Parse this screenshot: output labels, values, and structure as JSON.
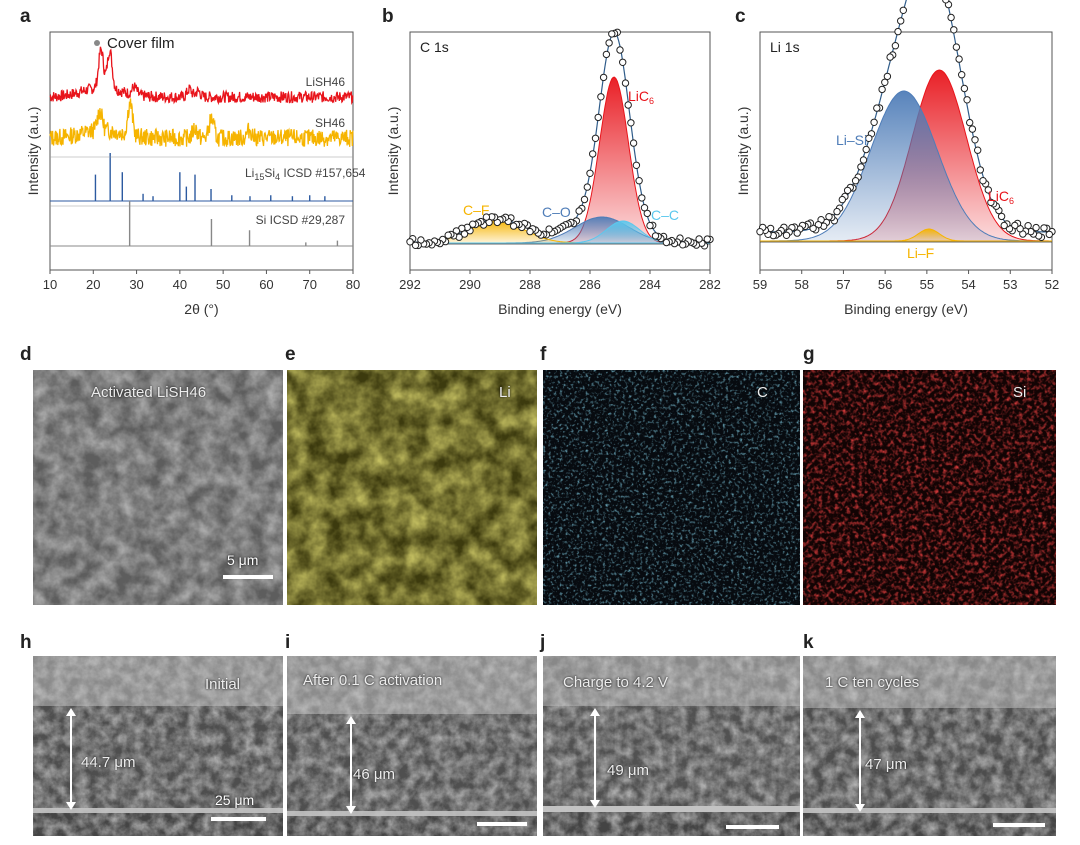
{
  "panels": {
    "a": "a",
    "b": "b",
    "c": "c",
    "d": "d",
    "e": "e",
    "f": "f",
    "g": "g",
    "h": "h",
    "i": "i",
    "j": "j",
    "k": "k"
  },
  "chart_data": [
    {
      "id": "a",
      "type": "line",
      "xlabel": "2θ (°)",
      "ylabel": "Intensity (a.u.)",
      "xlim": [
        10,
        80
      ],
      "xticks": [
        10,
        20,
        30,
        40,
        50,
        60,
        70,
        80
      ],
      "legend_marker_label": "Cover film",
      "series": [
        {
          "name": "LiSH46",
          "color": "#e8141b",
          "peaks": [
            [
              21.8,
              1.0
            ],
            [
              23.8,
              1.0
            ],
            [
              29.5,
              0.2
            ],
            [
              42.2,
              0.2
            ],
            [
              44.2,
              0.15
            ]
          ]
        },
        {
          "name": "SH46",
          "color": "#f6b400",
          "peaks": [
            [
              21.5,
              0.6
            ],
            [
              28.5,
              1.0
            ],
            [
              47.3,
              0.6
            ],
            [
              43.5,
              0.3
            ],
            [
              56.1,
              0.25
            ]
          ]
        },
        {
          "name": "Li15Si4 ICSD #157,654",
          "name_base": "Li",
          "name_sub1": "15",
          "name_mid": "Si",
          "name_sub2": "4",
          "name_tail": " ICSD #157,654",
          "color": "#2c5aa0",
          "sticks": [
            [
              20.5,
              0.55
            ],
            [
              23.9,
              1.0
            ],
            [
              26.7,
              0.6
            ],
            [
              31.5,
              0.15
            ],
            [
              33.8,
              0.1
            ],
            [
              40.0,
              0.6
            ],
            [
              41.5,
              0.3
            ],
            [
              43.5,
              0.55
            ],
            [
              47.2,
              0.25
            ],
            [
              52.0,
              0.12
            ],
            [
              56.2,
              0.1
            ],
            [
              61.0,
              0.12
            ],
            [
              66.0,
              0.1
            ],
            [
              70.0,
              0.12
            ],
            [
              73.5,
              0.1
            ]
          ]
        },
        {
          "name": "Si ICSD #29,287",
          "color": "#888888",
          "sticks": [
            [
              28.4,
              1.0
            ],
            [
              47.3,
              0.6
            ],
            [
              56.1,
              0.35
            ],
            [
              69.1,
              0.08
            ],
            [
              76.4,
              0.12
            ]
          ]
        }
      ]
    },
    {
      "id": "b",
      "type": "line",
      "title": "C 1s",
      "xlabel": "Binding energy (eV)",
      "ylabel": "Intensity (a.u.)",
      "xlim": [
        292,
        282
      ],
      "xticks": [
        292,
        290,
        288,
        286,
        284,
        282
      ],
      "components": [
        {
          "name": "C–F",
          "color": "#f6b400",
          "center": 289.1,
          "height": 0.11,
          "sigma": 0.9
        },
        {
          "name": "C–O",
          "color": "#4f7db8",
          "center": 285.6,
          "height": 0.13,
          "sigma": 0.9
        },
        {
          "name": "C–C",
          "color": "#5bc8ee",
          "center": 284.9,
          "height": 0.11,
          "sigma": 0.55
        },
        {
          "name": "LiC6",
          "name_base": "LiC",
          "name_sub": "6",
          "color": "#e8141b",
          "center": 285.2,
          "height": 0.83,
          "sigma": 0.48
        }
      ]
    },
    {
      "id": "c",
      "type": "line",
      "title": "Li 1s",
      "xlabel": "Binding energy (eV)",
      "ylabel": "Intensity (a.u.)",
      "xlim": [
        59,
        52
      ],
      "xticks": [
        59,
        58,
        57,
        56,
        55,
        54,
        53,
        52
      ],
      "components": [
        {
          "name": "Li–Si",
          "color": "#4f7db8",
          "center": 55.55,
          "height": 0.5,
          "sigma": 0.8
        },
        {
          "name": "LiC6",
          "name_base": "LiC",
          "name_sub": "6",
          "color": "#e8141b",
          "center": 54.7,
          "height": 0.57,
          "sigma": 0.65
        },
        {
          "name": "Li–F",
          "color": "#f6b400",
          "center": 54.95,
          "height": 0.04,
          "sigma": 0.25
        }
      ]
    }
  ],
  "images": {
    "d": {
      "label": "Activated LiSH46",
      "scale": "5 μm"
    },
    "e": {
      "label": "Li"
    },
    "f": {
      "label": "C"
    },
    "g": {
      "label": "Si"
    },
    "h": {
      "label": "Initial",
      "thickness": "44.7 μm",
      "scale": "25 μm"
    },
    "i": {
      "label": "After 0.1 C activation",
      "thickness": "46 μm"
    },
    "j": {
      "label": "Charge to 4.2 V",
      "thickness": "49 μm"
    },
    "k": {
      "label": "1 C ten cycles",
      "thickness": "47 μm"
    }
  },
  "colors": {
    "li_map": "#6b6516",
    "c_map": "#0d2030",
    "si_map": "#3a0505",
    "sem": "#6a6a6a"
  }
}
